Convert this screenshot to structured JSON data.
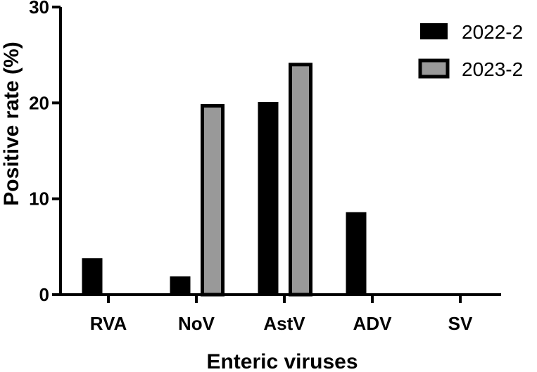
{
  "chart_data": {
    "type": "bar",
    "title": "",
    "xlabel": "Enteric viruses",
    "ylabel": "Positive rate (%)",
    "ylim": [
      0,
      30
    ],
    "yticks": [
      0,
      10,
      20,
      30
    ],
    "categories": [
      "RVA",
      "NoV",
      "AstV",
      "ADV",
      "SV"
    ],
    "series": [
      {
        "name": "2022-2",
        "color": "#000000",
        "values": [
          3.8,
          1.9,
          20.1,
          8.6,
          0
        ]
      },
      {
        "name": "2023-2",
        "color": "#999999",
        "values": [
          0,
          19.7,
          24.0,
          0,
          0
        ]
      }
    ],
    "legend_position": "top-right",
    "grid": false
  }
}
